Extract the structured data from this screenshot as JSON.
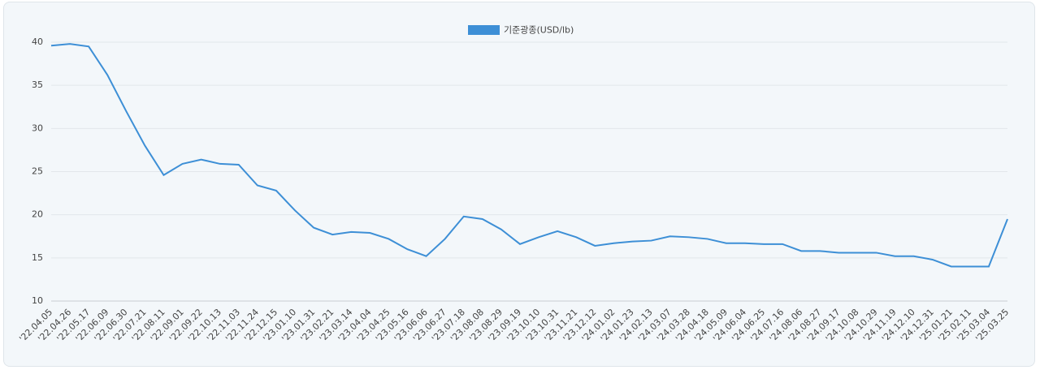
{
  "chart_data": {
    "type": "line",
    "legend": "기준광종(USD/lb)",
    "color": "#3d8fd6",
    "categories": [
      "'22.04.05",
      "'22.04.26",
      "'22.05.17",
      "'22.06.09",
      "'22.06.30",
      "'22.07.21",
      "'22.08.11",
      "'22.09.01",
      "'22.09.22",
      "'22.10.13",
      "'22.11.03",
      "'22.11.24",
      "'22.12.15",
      "'23.01.10",
      "'23.01.31",
      "'23.02.21",
      "'23.03.14",
      "'23.04.04",
      "'23.04.25",
      "'23.05.16",
      "'23.06.06",
      "'23.06.27",
      "'23.07.18",
      "'23.08.08",
      "'23.08.29",
      "'23.09.19",
      "'23.10.10",
      "'23.10.31",
      "'23.11.21",
      "'23.12.12",
      "'24.01.02",
      "'24.01.23",
      "'24.02.13",
      "'24.03.07",
      "'24.03.28",
      "'24.04.18",
      "'24.05.09",
      "'24.06.04",
      "'24.06.25",
      "'24.07.16",
      "'24.08.06",
      "'24.08.27",
      "'24.09.17",
      "'24.10.08",
      "'24.10.29",
      "'24.11.19",
      "'24.12.10",
      "'24.12.31",
      "'25.01.21",
      "'25.02.11",
      "'25.03.04",
      "'25.03.25"
    ],
    "values": [
      39.6,
      39.8,
      39.5,
      36.2,
      32,
      28,
      24.6,
      25.9,
      26.4,
      25.9,
      25.8,
      23.4,
      22.8,
      20.5,
      18.5,
      17.7,
      18,
      17.9,
      17.2,
      16,
      15.2,
      17.2,
      19.8,
      19.5,
      18.3,
      16.6,
      17.4,
      18.1,
      17.4,
      16.4,
      16.7,
      16.9,
      17,
      17.5,
      17.4,
      17.2,
      16.7,
      16.7,
      16.6,
      16.6,
      15.8,
      15.8,
      15.6,
      15.6,
      15.6,
      15.2,
      15.2,
      14.8,
      14,
      14,
      14,
      19.5
    ],
    "ylim": [
      10,
      40
    ],
    "yticks": [
      10,
      15,
      20,
      25,
      30,
      35,
      40
    ],
    "grid": true
  }
}
